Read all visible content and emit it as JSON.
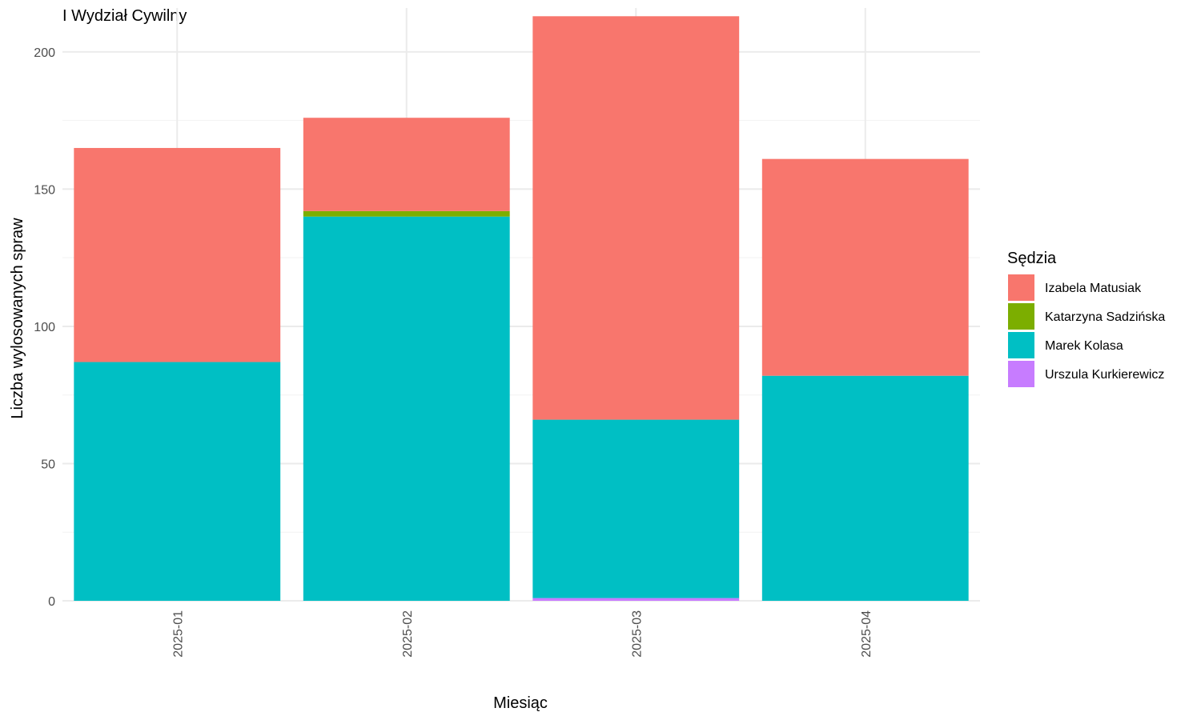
{
  "chart_data": {
    "type": "bar",
    "stacked": true,
    "title": "I Wydział Cywilny",
    "xlabel": "Miesiąc",
    "ylabel": "Liczba wylosowanych spraw",
    "categories": [
      "2025-01",
      "2025-02",
      "2025-03",
      "2025-04"
    ],
    "ylim": [
      0,
      216
    ],
    "yticks": [
      0,
      50,
      100,
      150,
      200
    ],
    "grid": true,
    "legend": {
      "title": "Sędzia",
      "position": "right"
    },
    "series": [
      {
        "name": "Urszula Kurkierewicz",
        "color": "#C77CFF",
        "values": [
          0,
          0,
          1,
          0
        ]
      },
      {
        "name": "Marek Kolasa",
        "color": "#00BFC4",
        "values": [
          87,
          140,
          65,
          82
        ]
      },
      {
        "name": "Katarzyna Sadzińska",
        "color": "#7CAE00",
        "values": [
          0,
          2,
          0,
          0
        ]
      },
      {
        "name": "Izabela Matusiak",
        "color": "#F8766D",
        "values": [
          78,
          34,
          147,
          79
        ]
      }
    ],
    "legend_order": [
      "Izabela Matusiak",
      "Katarzyna Sadzińska",
      "Marek Kolasa",
      "Urszula Kurkierewicz"
    ]
  }
}
